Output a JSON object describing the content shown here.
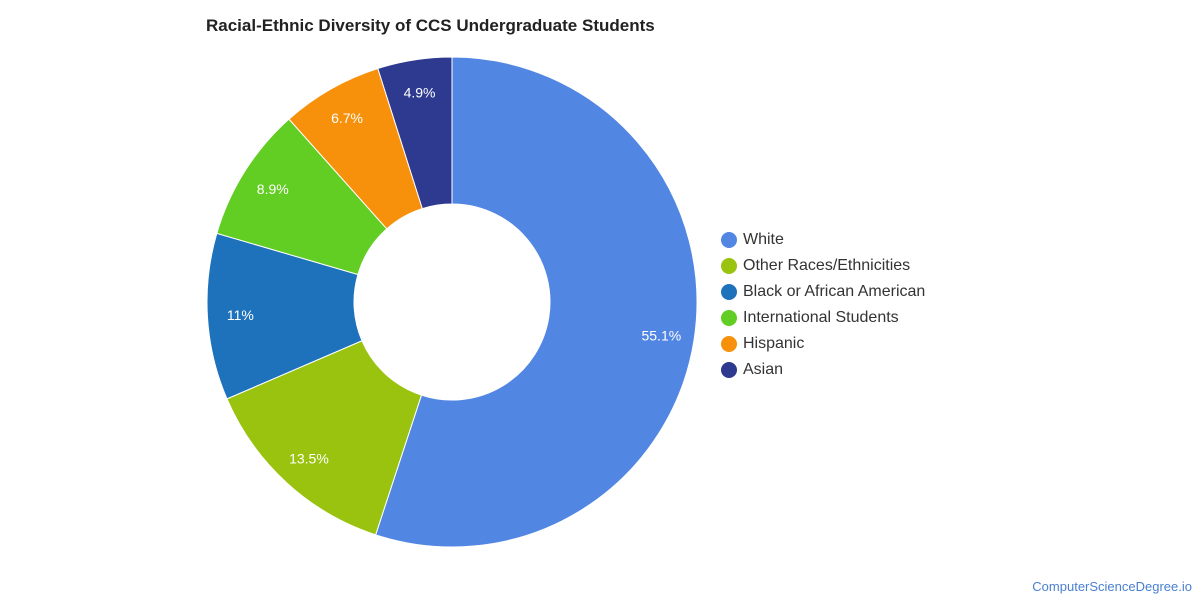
{
  "chart_data": {
    "type": "pie",
    "variant": "donut",
    "title": "Racial-Ethnic Diversity of CCS Undergraduate Students",
    "categories": [
      "White",
      "Other Races/Ethnicities",
      "Black or African American",
      "International Students",
      "Hispanic",
      "Asian"
    ],
    "values": [
      55.1,
      13.5,
      11,
      8.9,
      6.7,
      4.9
    ],
    "data_labels": [
      "55.1%",
      "13.5%",
      "11%",
      "8.9%",
      "6.7%",
      "4.9%"
    ],
    "colors": [
      "#5286e3",
      "#99c30f",
      "#1e72bc",
      "#62cd22",
      "#f7910b",
      "#2d3a8f"
    ],
    "legend_position": "right",
    "start_angle": "12 o'clock, clockwise"
  },
  "credit": "ComputerScienceDegree.io"
}
